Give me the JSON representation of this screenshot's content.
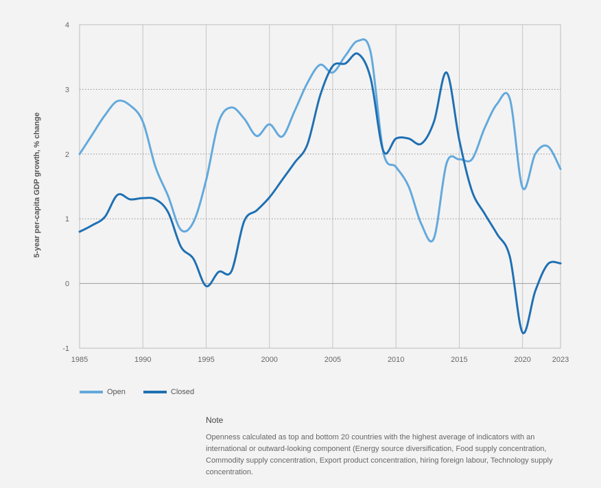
{
  "chart_data": {
    "type": "line",
    "xlabel": "",
    "ylabel": "5-year per-capita GDP growth, % change",
    "xlim": [
      1985,
      2023
    ],
    "ylim": [
      -1,
      4
    ],
    "xticks": [
      1985,
      1990,
      1995,
      2000,
      2005,
      2010,
      2015,
      2020,
      2023
    ],
    "yticks": [
      -1,
      0,
      1,
      2,
      3,
      4
    ],
    "series": [
      {
        "name": "Open",
        "color": "#63a9dc",
        "points": [
          [
            1985,
            2.0
          ],
          [
            1986,
            2.3
          ],
          [
            1987,
            2.6
          ],
          [
            1988,
            2.82
          ],
          [
            1989,
            2.75
          ],
          [
            1990,
            2.5
          ],
          [
            1991,
            1.8
          ],
          [
            1992,
            1.35
          ],
          [
            1993,
            0.83
          ],
          [
            1994,
            0.95
          ],
          [
            1995,
            1.6
          ],
          [
            1996,
            2.5
          ],
          [
            1997,
            2.72
          ],
          [
            1998,
            2.55
          ],
          [
            1999,
            2.28
          ],
          [
            2000,
            2.46
          ],
          [
            2001,
            2.27
          ],
          [
            2002,
            2.67
          ],
          [
            2003,
            3.1
          ],
          [
            2004,
            3.38
          ],
          [
            2005,
            3.26
          ],
          [
            2006,
            3.52
          ],
          [
            2007,
            3.75
          ],
          [
            2008,
            3.57
          ],
          [
            2009,
            2.03
          ],
          [
            2010,
            1.8
          ],
          [
            2011,
            1.5
          ],
          [
            2012,
            0.92
          ],
          [
            2013,
            0.7
          ],
          [
            2014,
            1.86
          ],
          [
            2015,
            1.92
          ],
          [
            2016,
            1.92
          ],
          [
            2017,
            2.4
          ],
          [
            2018,
            2.78
          ],
          [
            2019,
            2.85
          ],
          [
            2020,
            1.48
          ],
          [
            2021,
            2.0
          ],
          [
            2022,
            2.12
          ],
          [
            2023,
            1.77
          ]
        ]
      },
      {
        "name": "Closed",
        "color": "#1f70b3",
        "points": [
          [
            1985,
            0.8
          ],
          [
            1986,
            0.9
          ],
          [
            1987,
            1.03
          ],
          [
            1988,
            1.37
          ],
          [
            1989,
            1.3
          ],
          [
            1990,
            1.32
          ],
          [
            1991,
            1.3
          ],
          [
            1992,
            1.1
          ],
          [
            1993,
            0.57
          ],
          [
            1994,
            0.38
          ],
          [
            1995,
            -0.04
          ],
          [
            1996,
            0.18
          ],
          [
            1997,
            0.19
          ],
          [
            1998,
            0.96
          ],
          [
            1999,
            1.13
          ],
          [
            2000,
            1.33
          ],
          [
            2001,
            1.6
          ],
          [
            2002,
            1.87
          ],
          [
            2003,
            2.15
          ],
          [
            2004,
            2.9
          ],
          [
            2005,
            3.36
          ],
          [
            2006,
            3.4
          ],
          [
            2007,
            3.55
          ],
          [
            2008,
            3.17
          ],
          [
            2009,
            2.05
          ],
          [
            2010,
            2.24
          ],
          [
            2011,
            2.24
          ],
          [
            2012,
            2.16
          ],
          [
            2013,
            2.5
          ],
          [
            2014,
            3.26
          ],
          [
            2015,
            2.22
          ],
          [
            2016,
            1.43
          ],
          [
            2017,
            1.08
          ],
          [
            2018,
            0.76
          ],
          [
            2019,
            0.41
          ],
          [
            2020,
            -0.76
          ],
          [
            2021,
            -0.12
          ],
          [
            2022,
            0.3
          ],
          [
            2023,
            0.31
          ]
        ]
      }
    ],
    "grid": true,
    "legend": "bottom-left"
  },
  "legend": {
    "open_label": "Open",
    "closed_label": "Closed"
  },
  "note": {
    "title": "Note",
    "text": "Openness calculated as top and bottom 20 countries with the highest average of indicators with an international or outward-looking component (Energy source diversification, Food supply concentration, Commodity supply concentration, Export product concentration, hiring foreign labour, Technology supply concentration."
  }
}
